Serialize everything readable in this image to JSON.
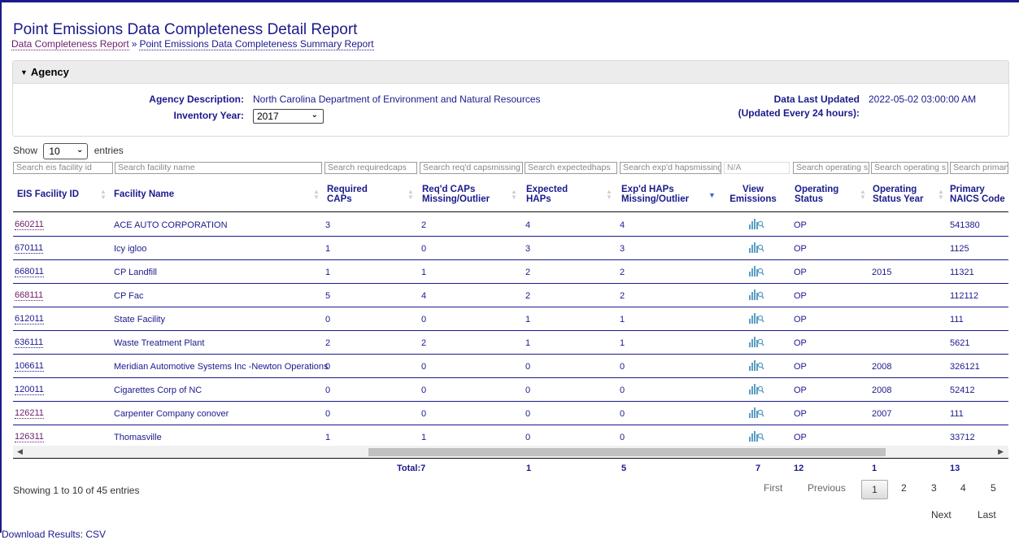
{
  "page": {
    "title": "Point Emissions Data Completeness Detail Report",
    "breadcrumb": [
      "Data Completeness Report",
      "Point Emissions Data Completeness Summary Report"
    ],
    "breadcrumb_sep": "»"
  },
  "agency": {
    "header": "Agency",
    "description_label": "Agency Description:",
    "description": "North Carolina Department of Environment and Natural Resources",
    "year_label": "Inventory Year:",
    "year": "2017",
    "updated_label_1": "Data Last Updated",
    "updated_label_2": "(Updated Every 24 hours):",
    "updated": "2022-05-02 03:00:00 AM"
  },
  "table_controls": {
    "show": "Show",
    "entries_value": "10",
    "entries": "entries"
  },
  "search_placeholders": {
    "eis_id": "Search eis facility id",
    "facility_name": "Search facility name",
    "required_caps": "Search requiredcaps",
    "caps_missing": "Search req'd capsmissing",
    "expected_haps": "Search expectedhaps",
    "haps_missing": "Search exp'd hapsmissing",
    "view_emissions": "N/A",
    "operating_status": "Search operating s",
    "operating_status_year": "Search operating s",
    "naics": "Search primary"
  },
  "columns": {
    "eis_id": "EIS Facility ID",
    "facility_name": "Facility Name",
    "required_caps_1": "Required",
    "required_caps_2": "CAPs",
    "caps_missing_1": "Req'd CAPs",
    "caps_missing_2": "Missing/Outlier",
    "expected_haps_1": "Expected",
    "expected_haps_2": "HAPs",
    "haps_missing_1": "Exp'd HAPs",
    "haps_missing_2": "Missing/Outlier",
    "view_emissions_1": "View",
    "view_emissions_2": "Emissions",
    "operating_status_1": "Operating",
    "operating_status_2": "Status",
    "operating_status_year_1": "Operating",
    "operating_status_year_2": "Status Year",
    "naics_1": "Primary",
    "naics_2": "NAICS Code"
  },
  "rows": [
    {
      "id": "660211",
      "name": "ACE AUTO CORPORATION",
      "req_caps": "3",
      "caps_missing": "2",
      "exp_haps": "4",
      "haps_missing": "4",
      "status": "OP",
      "status_year": "",
      "naics": "541380"
    },
    {
      "id": "670111",
      "name": "Icy igloo",
      "req_caps": "1",
      "caps_missing": "0",
      "exp_haps": "3",
      "haps_missing": "3",
      "status": "OP",
      "status_year": "",
      "naics": "1125"
    },
    {
      "id": "668011",
      "name": "CP Landfill",
      "req_caps": "1",
      "caps_missing": "1",
      "exp_haps": "2",
      "haps_missing": "2",
      "status": "OP",
      "status_year": "2015",
      "naics": "11321"
    },
    {
      "id": "668111",
      "name": "CP Fac",
      "req_caps": "5",
      "caps_missing": "4",
      "exp_haps": "2",
      "haps_missing": "2",
      "status": "OP",
      "status_year": "",
      "naics": "112112"
    },
    {
      "id": "612011",
      "name": "State Facility",
      "req_caps": "0",
      "caps_missing": "0",
      "exp_haps": "1",
      "haps_missing": "1",
      "status": "OP",
      "status_year": "",
      "naics": "111"
    },
    {
      "id": "636111",
      "name": "Waste Treatment Plant",
      "req_caps": "2",
      "caps_missing": "2",
      "exp_haps": "1",
      "haps_missing": "1",
      "status": "OP",
      "status_year": "",
      "naics": "5621"
    },
    {
      "id": "106611",
      "name": "Meridian Automotive Systems Inc -Newton Operations",
      "req_caps": "0",
      "caps_missing": "0",
      "exp_haps": "0",
      "haps_missing": "0",
      "status": "OP",
      "status_year": "2008",
      "naics": "326121"
    },
    {
      "id": "120011",
      "name": "Cigarettes Corp of NC",
      "req_caps": "0",
      "caps_missing": "0",
      "exp_haps": "0",
      "haps_missing": "0",
      "status": "OP",
      "status_year": "2008",
      "naics": "52412"
    },
    {
      "id": "126211",
      "name": "Carpenter Company conover",
      "req_caps": "0",
      "caps_missing": "0",
      "exp_haps": "0",
      "haps_missing": "0",
      "status": "OP",
      "status_year": "2007",
      "naics": "111"
    },
    {
      "id": "126311",
      "name": "Thomasville",
      "req_caps": "1",
      "caps_missing": "1",
      "exp_haps": "0",
      "haps_missing": "0",
      "status": "OP",
      "status_year": "",
      "naics": "33712"
    }
  ],
  "totals": {
    "req_caps": "Total:7",
    "caps_missing": "1",
    "exp_haps": "5",
    "view_emissions": "7",
    "status": "12",
    "status_year": "1",
    "naics": "13"
  },
  "footer": {
    "info": "Showing 1 to 10 of 45 entries",
    "first": "First",
    "previous": "Previous",
    "pages": [
      "1",
      "2",
      "3",
      "4",
      "5"
    ],
    "next": "Next",
    "last": "Last",
    "download": "Download Results: CSV"
  },
  "colors": {
    "link": "#1a1a8c",
    "visited": "#6b1d6b",
    "icon": "#5a9ec4"
  },
  "icons": {
    "view_emissions": "bar-chart-magnifier-icon",
    "sort": "sort-arrows-icon",
    "collapse": "triangle-down-icon"
  }
}
